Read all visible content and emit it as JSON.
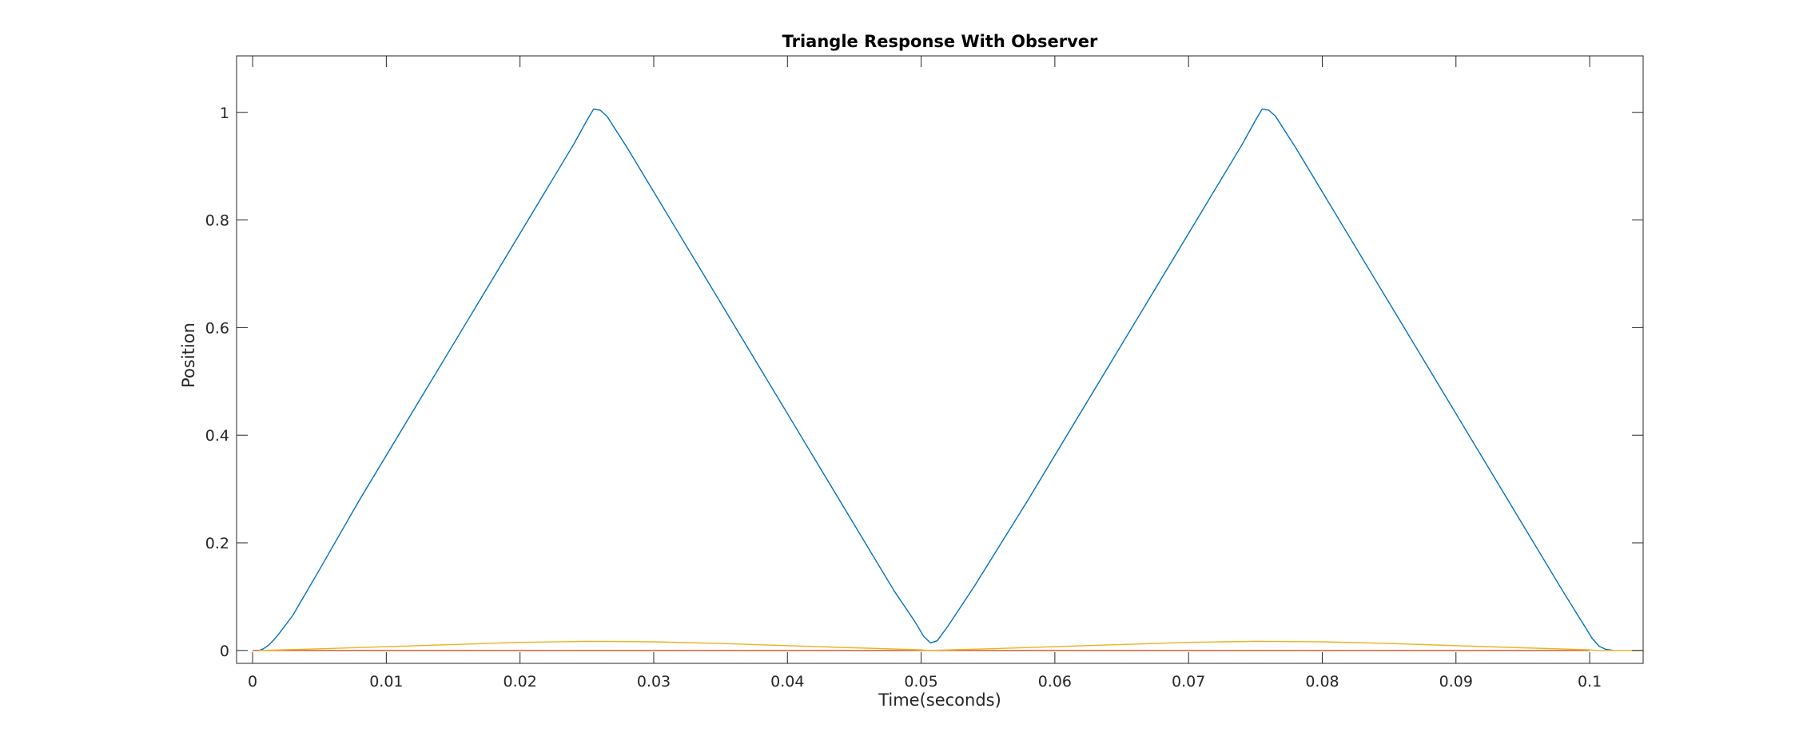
{
  "chart_data": {
    "type": "line",
    "title": "Triangle Response With Observer",
    "xlabel": "Time(seconds)",
    "ylabel": "Position",
    "xlim": [
      -0.0012,
      0.104
    ],
    "ylim": [
      -0.024,
      1.105
    ],
    "x_ticks": [
      0,
      0.01,
      0.02,
      0.03,
      0.04,
      0.05,
      0.06,
      0.07,
      0.08,
      0.09,
      0.1
    ],
    "x_tick_labels": [
      "0",
      "0.01",
      "0.02",
      "0.03",
      "0.04",
      "0.05",
      "0.06",
      "0.07",
      "0.08",
      "0.09",
      "0.1"
    ],
    "y_ticks": [
      0,
      0.2,
      0.4,
      0.6,
      0.8,
      1
    ],
    "y_tick_labels": [
      "0",
      "0.2",
      "0.4",
      "0.6",
      "0.8",
      "1"
    ],
    "grid": false,
    "legend": "none",
    "series": [
      {
        "color": "#0072BD",
        "x": [
          0.0005,
          0.0008,
          0.0012,
          0.0016,
          0.002,
          0.003,
          0.005,
          0.008,
          0.012,
          0.016,
          0.02,
          0.024,
          0.025,
          0.0255,
          0.026,
          0.0265,
          0.028,
          0.032,
          0.036,
          0.04,
          0.044,
          0.048,
          0.0495,
          0.0502,
          0.0507,
          0.0512,
          0.052,
          0.054,
          0.058,
          0.062,
          0.066,
          0.07,
          0.074,
          0.075,
          0.0755,
          0.076,
          0.0765,
          0.078,
          0.082,
          0.086,
          0.09,
          0.094,
          0.098,
          0.0995,
          0.1002,
          0.1007,
          0.1012,
          0.1018
        ],
        "y": [
          0.0,
          0.003,
          0.01,
          0.02,
          0.032,
          0.065,
          0.15,
          0.28,
          0.445,
          0.61,
          0.775,
          0.94,
          0.985,
          1.006,
          1.004,
          0.993,
          0.935,
          0.77,
          0.605,
          0.44,
          0.275,
          0.11,
          0.055,
          0.026,
          0.014,
          0.018,
          0.045,
          0.12,
          0.28,
          0.445,
          0.61,
          0.775,
          0.94,
          0.985,
          1.006,
          1.004,
          0.993,
          0.935,
          0.77,
          0.605,
          0.44,
          0.275,
          0.11,
          0.05,
          0.022,
          0.008,
          0.002,
          0.0
        ]
      },
      {
        "color": "#D95319",
        "x": [
          0,
          0.01,
          0.02,
          0.03,
          0.04,
          0.05,
          0.06,
          0.07,
          0.08,
          0.09,
          0.1
        ],
        "y": [
          0,
          0,
          0,
          0,
          0,
          0,
          0,
          0,
          0,
          0,
          0
        ]
      },
      {
        "color": "#EDB120",
        "x": [
          0.0005,
          0.005,
          0.01,
          0.015,
          0.02,
          0.025,
          0.03,
          0.035,
          0.04,
          0.045,
          0.05,
          0.0505,
          0.055,
          0.06,
          0.065,
          0.07,
          0.075,
          0.08,
          0.085,
          0.09,
          0.095,
          0.1,
          0.1005,
          0.104
        ],
        "y": [
          0.0,
          0.003,
          0.007,
          0.011,
          0.015,
          0.017,
          0.016,
          0.013,
          0.009,
          0.005,
          0.001,
          0.0,
          0.003,
          0.007,
          0.011,
          0.015,
          0.017,
          0.016,
          0.013,
          0.009,
          0.005,
          0.001,
          0.0,
          0.0
        ]
      }
    ]
  }
}
